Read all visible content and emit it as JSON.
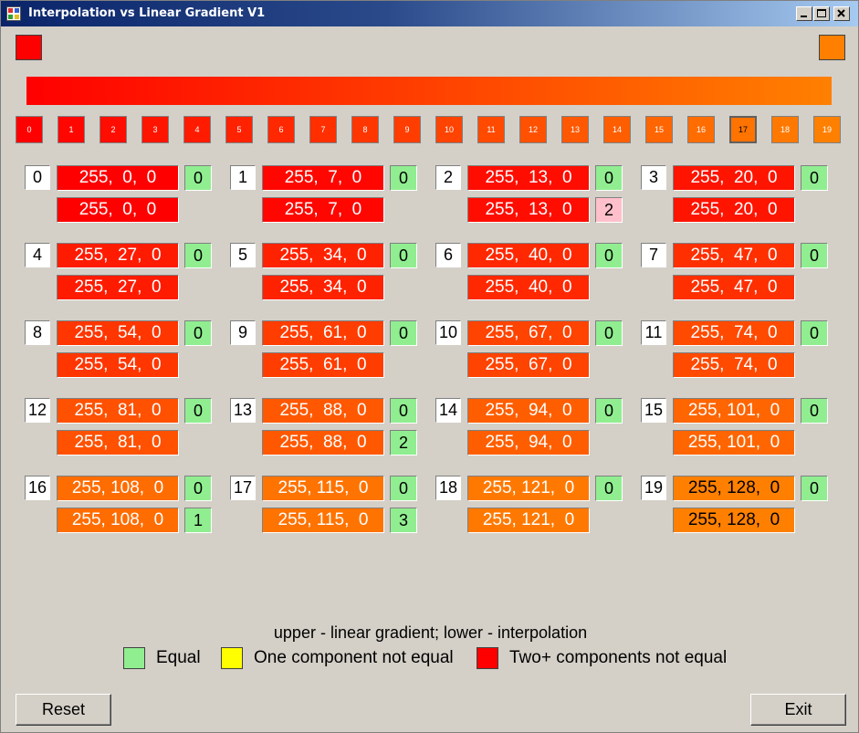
{
  "window": {
    "title": "Interpolation vs Linear Gradient V1",
    "start_color": "#ff0000",
    "end_color": "#ff8000"
  },
  "strip": [
    "0",
    "1",
    "2",
    "3",
    "4",
    "5",
    "6",
    "7",
    "8",
    "9",
    "10",
    "11",
    "12",
    "13",
    "14",
    "15",
    "16",
    "17",
    "18",
    "19"
  ],
  "strip_selected": "17",
  "cells": [
    {
      "index": "0",
      "upper": "255,  0,  0",
      "lower": "255,  0,  0",
      "upper_diff": "0",
      "lower_diff": ""
    },
    {
      "index": "1",
      "upper": "255,  7,  0",
      "lower": "255,  7,  0",
      "upper_diff": "0",
      "lower_diff": ""
    },
    {
      "index": "2",
      "upper": "255,  13,  0",
      "lower": "255,  13,  0",
      "upper_diff": "0",
      "lower_diff": "2"
    },
    {
      "index": "3",
      "upper": "255,  20,  0",
      "lower": "255,  20,  0",
      "upper_diff": "0",
      "lower_diff": ""
    },
    {
      "index": "4",
      "upper": "255,  27,  0",
      "lower": "255,  27,  0",
      "upper_diff": "0",
      "lower_diff": ""
    },
    {
      "index": "5",
      "upper": "255,  34,  0",
      "lower": "255,  34,  0",
      "upper_diff": "0",
      "lower_diff": ""
    },
    {
      "index": "6",
      "upper": "255,  40,  0",
      "lower": "255,  40,  0",
      "upper_diff": "0",
      "lower_diff": ""
    },
    {
      "index": "7",
      "upper": "255,  47,  0",
      "lower": "255,  47,  0",
      "upper_diff": "0",
      "lower_diff": ""
    },
    {
      "index": "8",
      "upper": "255,  54,  0",
      "lower": "255,  54,  0",
      "upper_diff": "0",
      "lower_diff": ""
    },
    {
      "index": "9",
      "upper": "255,  61,  0",
      "lower": "255,  61,  0",
      "upper_diff": "0",
      "lower_diff": ""
    },
    {
      "index": "10",
      "upper": "255,  67,  0",
      "lower": "255,  67,  0",
      "upper_diff": "0",
      "lower_diff": ""
    },
    {
      "index": "11",
      "upper": "255,  74,  0",
      "lower": "255,  74,  0",
      "upper_diff": "0",
      "lower_diff": ""
    },
    {
      "index": "12",
      "upper": "255,  81,  0",
      "lower": "255,  81,  0",
      "upper_diff": "0",
      "lower_diff": ""
    },
    {
      "index": "13",
      "upper": "255,  88,  0",
      "lower": "255,  88,  0",
      "upper_diff": "0",
      "lower_diff": "2"
    },
    {
      "index": "14",
      "upper": "255,  94,  0",
      "lower": "255,  94,  0",
      "upper_diff": "0",
      "lower_diff": ""
    },
    {
      "index": "15",
      "upper": "255, 101,  0",
      "lower": "255, 101,  0",
      "upper_diff": "0",
      "lower_diff": ""
    },
    {
      "index": "16",
      "upper": "255, 108,  0",
      "lower": "255, 108,  0",
      "upper_diff": "0",
      "lower_diff": "1"
    },
    {
      "index": "17",
      "upper": "255, 115,  0",
      "lower": "255, 115,  0",
      "upper_diff": "0",
      "lower_diff": "3"
    },
    {
      "index": "18",
      "upper": "255, 121,  0",
      "lower": "255, 121,  0",
      "upper_diff": "0",
      "lower_diff": ""
    },
    {
      "index": "19",
      "upper": "255, 128,  0",
      "lower": "255, 128,  0",
      "upper_diff": "0",
      "lower_diff": ""
    }
  ],
  "colors": {
    "equal": "#90ee90",
    "one_not_equal": "#ffff00",
    "two_not_equal": "#ff0000",
    "pink": "#ffc0cb",
    "dark_text_from_index": 19
  },
  "legend": {
    "caption": "upper - linear gradient; lower - interpolation",
    "equal": "Equal",
    "one": "One component not equal",
    "two": "Two+ components not equal"
  },
  "buttons": {
    "reset": "Reset",
    "exit": "Exit"
  }
}
